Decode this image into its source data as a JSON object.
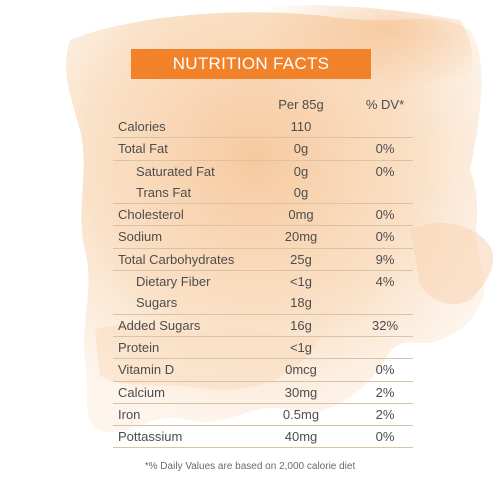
{
  "title": "NUTRITION FACTS",
  "columns": {
    "amount": "Per 85g",
    "dv": "% DV*"
  },
  "rows": [
    {
      "label": "Calories",
      "amount": "110",
      "dv": "",
      "indent": false,
      "border": false
    },
    {
      "label": "Total Fat",
      "amount": "0g",
      "dv": "0%",
      "indent": false,
      "border": false
    },
    {
      "label": "Saturated Fat",
      "amount": "0g",
      "dv": "0%",
      "indent": true,
      "border": false
    },
    {
      "label": "Trans Fat",
      "amount": "0g",
      "dv": "",
      "indent": true,
      "border": false
    },
    {
      "label": "Cholesterol",
      "amount": "0mg",
      "dv": "0%",
      "indent": false,
      "border": false
    },
    {
      "label": "Sodium",
      "amount": "20mg",
      "dv": "0%",
      "indent": false,
      "border": false
    },
    {
      "label": "Total Carbohydrates",
      "amount": "25g",
      "dv": "9%",
      "indent": false,
      "border": false
    },
    {
      "label": "Dietary Fiber",
      "amount": "<1g",
      "dv": "4%",
      "indent": true,
      "border": false
    },
    {
      "label": "Sugars",
      "amount": "18g",
      "dv": "",
      "indent": true,
      "border": false
    },
    {
      "label": "Added Sugars",
      "amount": "16g",
      "dv": "32%",
      "indent": false,
      "border": false
    },
    {
      "label": "Protein",
      "amount": "<1g",
      "dv": "",
      "indent": false,
      "border": false
    },
    {
      "label": "Vitamin D",
      "amount": "0mcg",
      "dv": "0%",
      "indent": false,
      "border": false
    },
    {
      "label": "Calcium",
      "amount": "30mg",
      "dv": "2%",
      "indent": false,
      "border": false
    },
    {
      "label": "Iron",
      "amount": "0.5mg",
      "dv": "2%",
      "indent": false,
      "border": false
    },
    {
      "label": "Pottassium",
      "amount": "40mg",
      "dv": "0%",
      "indent": false,
      "border": false
    }
  ],
  "footnote": "*% Daily Values are based on 2,000 calorie diet",
  "colors": {
    "banner": "#f2822a",
    "wash": "#f7c89a",
    "rule": "#d9c3a8"
  }
}
